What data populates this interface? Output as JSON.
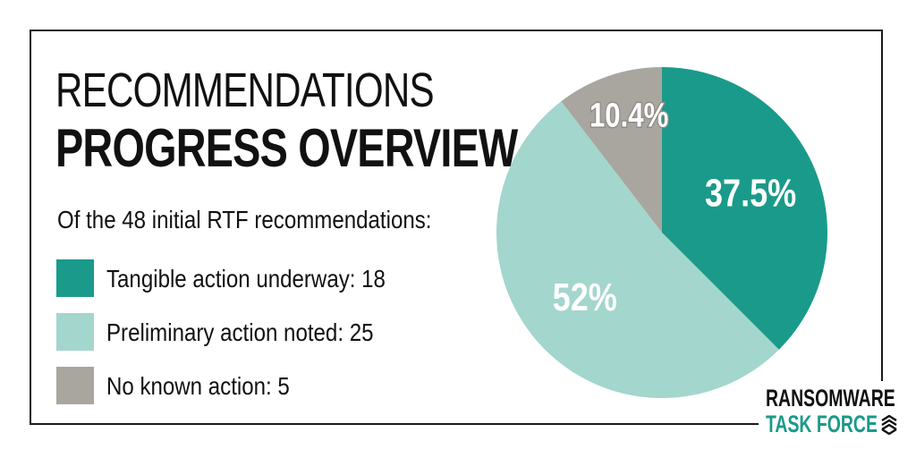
{
  "title_line1": "RECOMMENDATIONS",
  "title_line2": "PROGRESS OVERVIEW",
  "intro": "Of the 48 initial RTF recommendations:",
  "legend": [
    {
      "label": "Tangible action underway: 18",
      "color": "#1a9a8a"
    },
    {
      "label": "Preliminary action noted: 25",
      "color": "#a3d6cd"
    },
    {
      "label": "No known action: 5",
      "color": "#a9a69f"
    }
  ],
  "chart_data": {
    "type": "pie",
    "title": "",
    "slices": [
      {
        "label": "37.5%",
        "value": 18,
        "color": "#1a9a8a",
        "label_color": "#ffffff"
      },
      {
        "label": "52%",
        "value": 25,
        "color": "#a3d6cd",
        "label_color": "#ffffff"
      },
      {
        "label": "10.4%",
        "value": 5,
        "color": "#a9a69f",
        "label_color": "#ffffff"
      }
    ],
    "start_angle_deg": 0,
    "direction": "clockwise"
  },
  "logo": {
    "line1": "RANSOMWARE",
    "line2": "TASK FORCE",
    "icon": "layered-chevron-icon",
    "line2_color": "#1a9a8a"
  }
}
